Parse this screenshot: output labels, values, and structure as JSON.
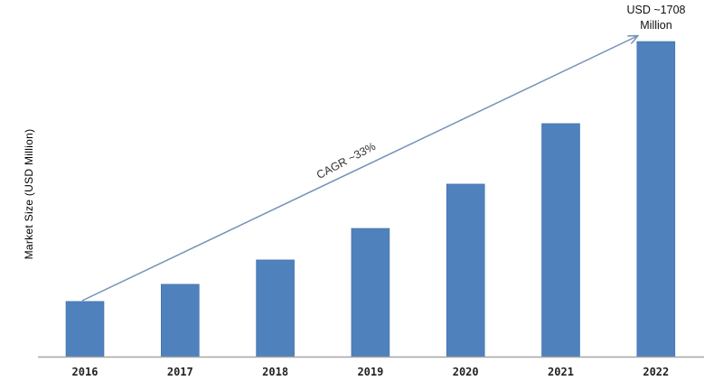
{
  "chart_data": {
    "type": "bar",
    "title": "",
    "xlabel": "",
    "ylabel": "Market Size (USD Million)",
    "categories": [
      "2016",
      "2017",
      "2018",
      "2019",
      "2020",
      "2021",
      "2022"
    ],
    "values": [
      299,
      392,
      524,
      695,
      935,
      1263,
      1708
    ],
    "ylim": [
      0,
      1708
    ],
    "grid": false,
    "legend": null,
    "bar_color": "#4f81bd",
    "annotations": [
      {
        "text": "USD ~1708 Million",
        "line1": "USD ~1708",
        "line2": "Million",
        "target": "2022"
      },
      {
        "text": "CAGR ~33%",
        "type": "arrow",
        "from": "2016",
        "to": "2022"
      }
    ]
  },
  "colors": {
    "bar": "#4f81bd",
    "bar_edge": "#3f6fa8",
    "arrow": "#7592b8",
    "axis": "#a6a6a6"
  }
}
